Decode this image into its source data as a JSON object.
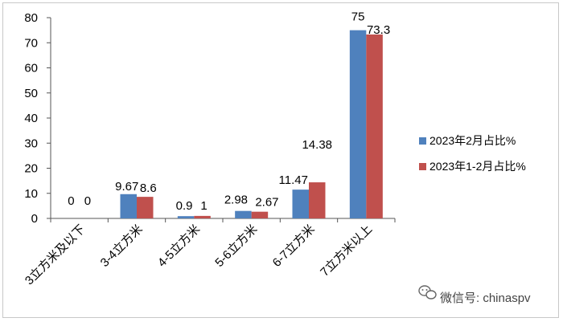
{
  "chart_data": {
    "type": "bar",
    "categories": [
      "3立方米及以下",
      "3-4立方米",
      "4-5立方米",
      "5-6立方米",
      "6-7立方米",
      "7立方米以上"
    ],
    "series": [
      {
        "name": "2023年2月占比%",
        "values": [
          0,
          9.67,
          0.9,
          2.98,
          11.47,
          75
        ],
        "labels": [
          "0",
          "9.67",
          "0.9",
          "2.98",
          "11.47",
          "75"
        ],
        "color": "#4f81bd"
      },
      {
        "name": "2023年1-2月占比%",
        "values": [
          0,
          8.6,
          1,
          2.67,
          14.38,
          73.3
        ],
        "labels": [
          "0",
          "8.6",
          "1",
          "2.67",
          "14.38",
          "73.3"
        ],
        "color": "#c0504d"
      }
    ],
    "ylim": [
      0,
      80
    ],
    "yticks": [
      0,
      10,
      20,
      30,
      40,
      50,
      60,
      70,
      80
    ],
    "grid": false,
    "legend_position": "right"
  },
  "watermark": {
    "text": "微信号: chinaspv",
    "icon": "wechat-icon"
  }
}
